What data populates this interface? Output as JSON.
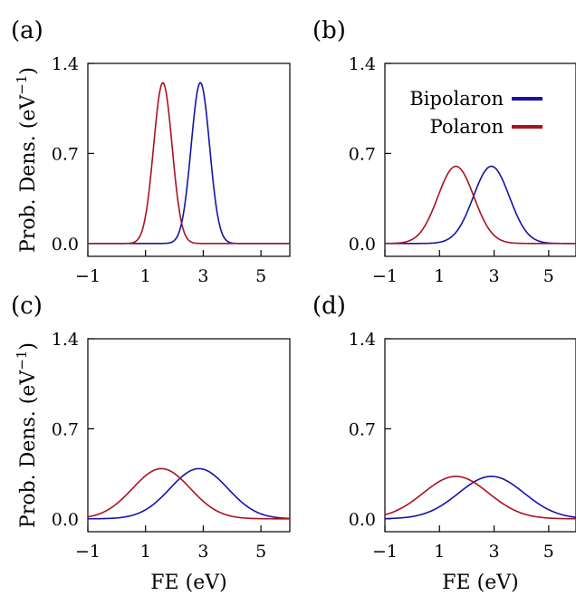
{
  "colors": {
    "bipolaron": "#1414a8",
    "polaron": "#a8141e"
  },
  "figure": {
    "xlabel": "FE (eV)",
    "ylabel": "Prob. Dens. (eV",
    "ylabel_sup": "−1",
    "ylabel_close": ")"
  },
  "legend": {
    "entries": [
      "Bipolaron",
      "Polaron"
    ],
    "placement": "top-right of panel (b)"
  },
  "chart_data": [
    {
      "panel": "(a)",
      "type": "line",
      "xlim": [
        -1,
        6
      ],
      "ylim": [
        -0.1,
        1.4
      ],
      "xticks": [
        -1,
        1,
        3,
        5
      ],
      "xtick_labels": [
        "−1",
        "1",
        "3",
        "5"
      ],
      "yticks": [
        0.0,
        0.7,
        1.4
      ],
      "ytick_labels": [
        "0.0",
        "0.7",
        "1.4"
      ],
      "series": [
        {
          "name": "Bipolaron",
          "color": "#1414a8",
          "peak_x": 2.9,
          "peak_y": 1.25,
          "sigma": 0.32
        },
        {
          "name": "Polaron",
          "color": "#a8141e",
          "peak_x": 1.6,
          "peak_y": 1.25,
          "sigma": 0.32
        }
      ]
    },
    {
      "panel": "(b)",
      "type": "line",
      "xlim": [
        -1,
        6
      ],
      "ylim": [
        -0.1,
        1.4
      ],
      "xticks": [
        -1,
        1,
        3,
        5
      ],
      "xtick_labels": [
        "−1",
        "1",
        "3",
        "5"
      ],
      "yticks": [
        0.0,
        0.7,
        1.4
      ],
      "ytick_labels": [
        "0.0",
        "0.7",
        "1.4"
      ],
      "series": [
        {
          "name": "Bipolaron",
          "color": "#1414a8",
          "peak_x": 2.9,
          "peak_y": 0.6,
          "sigma": 0.66
        },
        {
          "name": "Polaron",
          "color": "#a8141e",
          "peak_x": 1.6,
          "peak_y": 0.6,
          "sigma": 0.66
        }
      ]
    },
    {
      "panel": "(c)",
      "type": "line",
      "xlim": [
        -1,
        6
      ],
      "ylim": [
        -0.1,
        1.4
      ],
      "xticks": [
        -1,
        1,
        3,
        5
      ],
      "xtick_labels": [
        "−1",
        "1",
        "3",
        "5"
      ],
      "yticks": [
        0.0,
        0.7,
        1.4
      ],
      "ytick_labels": [
        "0.0",
        "0.7",
        "1.4"
      ],
      "series": [
        {
          "name": "Bipolaron",
          "color": "#1414a8",
          "peak_x": 2.85,
          "peak_y": 0.39,
          "sigma": 1.0
        },
        {
          "name": "Polaron",
          "color": "#a8141e",
          "peak_x": 1.55,
          "peak_y": 0.39,
          "sigma": 1.0
        }
      ]
    },
    {
      "panel": "(d)",
      "type": "line",
      "xlim": [
        -1,
        6
      ],
      "ylim": [
        -0.1,
        1.4
      ],
      "xticks": [
        -1,
        1,
        3,
        5
      ],
      "xtick_labels": [
        "−1",
        "1",
        "3",
        "5"
      ],
      "yticks": [
        0.0,
        0.7,
        1.4
      ],
      "ytick_labels": [
        "0.0",
        "0.7",
        "1.4"
      ],
      "series": [
        {
          "name": "Bipolaron",
          "color": "#1414a8",
          "peak_x": 2.9,
          "peak_y": 0.33,
          "sigma": 1.2
        },
        {
          "name": "Polaron",
          "color": "#a8141e",
          "peak_x": 1.6,
          "peak_y": 0.33,
          "sigma": 1.2
        }
      ]
    }
  ]
}
